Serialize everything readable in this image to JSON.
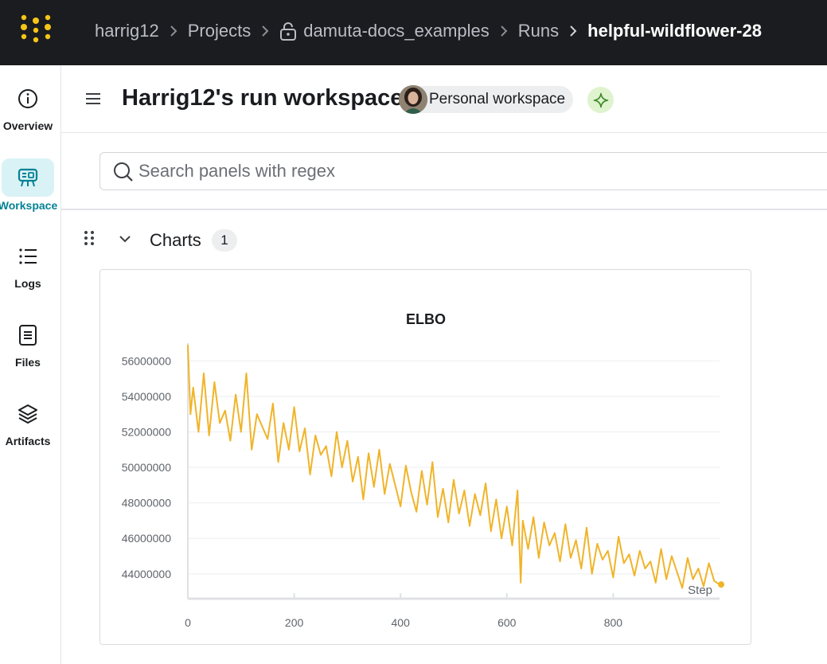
{
  "breadcrumb": {
    "user": "harrig12",
    "projects": "Projects",
    "project": "damuta-docs_examples",
    "runs": "Runs",
    "run": "helpful-wildflower-28"
  },
  "sidebar": {
    "items": [
      {
        "label": "Overview",
        "icon": "info-icon"
      },
      {
        "label": "Workspace",
        "icon": "workspace-icon",
        "active": true
      },
      {
        "label": "Logs",
        "icon": "list-icon"
      },
      {
        "label": "Files",
        "icon": "file-icon"
      },
      {
        "label": "Artifacts",
        "icon": "layers-icon"
      }
    ],
    "active_color": "#038194"
  },
  "header": {
    "title": "Harrig12's run workspace",
    "workspace_chip": "Personal workspace"
  },
  "search": {
    "placeholder": "Search panels with regex",
    "value": ""
  },
  "section": {
    "title": "Charts",
    "count": "1"
  },
  "chart_data": {
    "type": "line",
    "title": "ELBO",
    "xlabel": "Step",
    "ylabel": "",
    "xlim": [
      0,
      1000
    ],
    "ylim": [
      42600000,
      57000000
    ],
    "x_ticks": [
      0,
      200,
      400,
      600,
      800
    ],
    "y_ticks": [
      44000000,
      46000000,
      48000000,
      50000000,
      52000000,
      54000000,
      56000000
    ],
    "x_tick_labels": [
      "0",
      "200",
      "400",
      "600",
      "800"
    ],
    "y_tick_labels": [
      "44000000",
      "46000000",
      "48000000",
      "50000000",
      "52000000",
      "54000000",
      "56000000"
    ],
    "grid": true,
    "color": "#f0b429",
    "series": [
      {
        "x": [
          0,
          5,
          10,
          20,
          30,
          40,
          50,
          60,
          70,
          80,
          90,
          100,
          110,
          120,
          130,
          140,
          150,
          160,
          170,
          180,
          190,
          200,
          210,
          220,
          230,
          240,
          250,
          260,
          270,
          280,
          290,
          300,
          310,
          320,
          330,
          340,
          350,
          360,
          370,
          380,
          390,
          400,
          410,
          420,
          430,
          440,
          450,
          460,
          470,
          480,
          490,
          500,
          510,
          520,
          530,
          540,
          550,
          560,
          570,
          580,
          590,
          600,
          610,
          620,
          626,
          630,
          640,
          650,
          660,
          670,
          680,
          690,
          700,
          710,
          720,
          730,
          740,
          750,
          760,
          770,
          780,
          790,
          800,
          810,
          820,
          830,
          840,
          850,
          860,
          870,
          880,
          890,
          900,
          910,
          920,
          930,
          940,
          950,
          960,
          970,
          980,
          990,
          1000
        ],
        "y": [
          56900000,
          53000000,
          54500000,
          52000000,
          55300000,
          51800000,
          54800000,
          52500000,
          53200000,
          51500000,
          54100000,
          52000000,
          55300000,
          51000000,
          53000000,
          52300000,
          51600000,
          53600000,
          50300000,
          52500000,
          51000000,
          53400000,
          50900000,
          52200000,
          49600000,
          51800000,
          50700000,
          51200000,
          49500000,
          52000000,
          50000000,
          51500000,
          49200000,
          50600000,
          48200000,
          50800000,
          48900000,
          51000000,
          48500000,
          50200000,
          49000000,
          47800000,
          50100000,
          48600000,
          47500000,
          49800000,
          47900000,
          50300000,
          47200000,
          48800000,
          46900000,
          49300000,
          47400000,
          48700000,
          46700000,
          48500000,
          47300000,
          49100000,
          46400000,
          48200000,
          46000000,
          47800000,
          45600000,
          48700000,
          43500000,
          47000000,
          45400000,
          47200000,
          44900000,
          46900000,
          45600000,
          46300000,
          44700000,
          46800000,
          44900000,
          45900000,
          44300000,
          46600000,
          44000000,
          45700000,
          44800000,
          45300000,
          43800000,
          46100000,
          44600000,
          45100000,
          43900000,
          45300000,
          44300000,
          44700000,
          43500000,
          45400000,
          43700000,
          45000000,
          44100000,
          43200000,
          44900000,
          43700000,
          44300000,
          43300000,
          44600000,
          43600000,
          43400000
        ]
      }
    ]
  }
}
